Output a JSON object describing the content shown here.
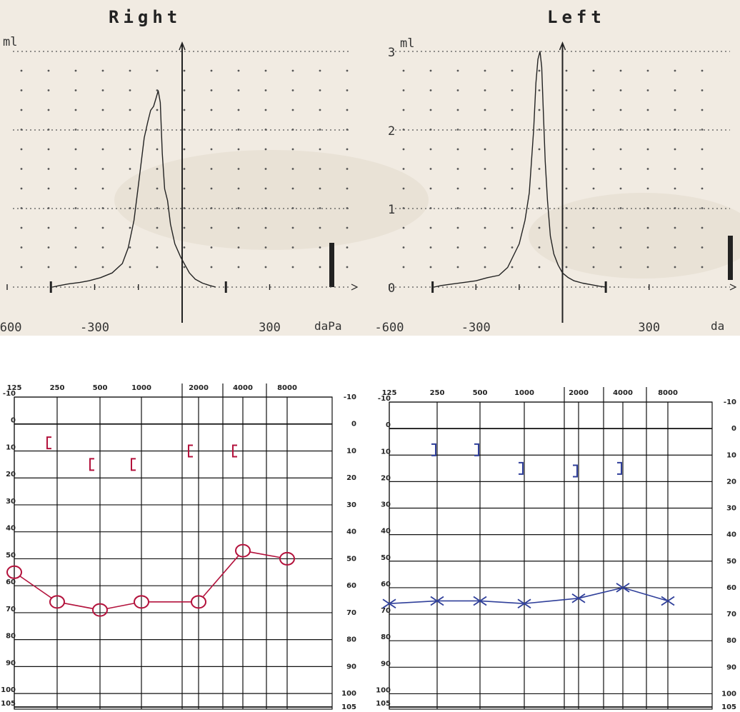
{
  "colors": {
    "paper": "#f1ebe2",
    "trace": "#222222",
    "grid_dot": "#555555",
    "right_ear": "#b3123c",
    "left_ear": "#2f3f9a"
  },
  "chart_data": [
    {
      "type": "line",
      "panel": "tympanogram-right",
      "title": "Right",
      "ylabel": "ml",
      "xunit": "daPa",
      "xlim": [
        -600,
        600
      ],
      "ylim": [
        0,
        3
      ],
      "x_tick_labels": [
        "-600",
        "-300",
        "300"
      ],
      "y_tick_labels": [],
      "grid": true,
      "series": [
        {
          "x": [
            -445,
            -420,
            -390,
            -350,
            -320,
            -280,
            -240,
            -205,
            -185,
            -165,
            -150,
            -130,
            -118,
            -108,
            -98,
            -90,
            -82,
            -75,
            -68,
            -60,
            -50,
            -40,
            -25,
            -5,
            10,
            25,
            45,
            70,
            95,
            115
          ],
          "y": [
            0.0,
            0.02,
            0.04,
            0.06,
            0.08,
            0.12,
            0.18,
            0.3,
            0.5,
            0.85,
            1.3,
            1.9,
            2.1,
            2.25,
            2.3,
            2.4,
            2.5,
            2.35,
            1.7,
            1.25,
            1.1,
            0.8,
            0.55,
            0.38,
            0.28,
            0.18,
            0.1,
            0.05,
            0.02,
            0.0
          ]
        }
      ]
    },
    {
      "type": "line",
      "panel": "tympanogram-left",
      "title": "Left",
      "ylabel": "ml",
      "xunit": "da",
      "xlim": [
        -600,
        600
      ],
      "ylim": [
        0,
        3
      ],
      "x_tick_labels": [
        "-600",
        "-300",
        "300"
      ],
      "y_tick_labels": [
        "0",
        "1",
        "2",
        "3"
      ],
      "grid": true,
      "series": [
        {
          "x": [
            -445,
            -420,
            -380,
            -340,
            -300,
            -260,
            -220,
            -190,
            -170,
            -150,
            -130,
            -115,
            -100,
            -92,
            -85,
            -78,
            -72,
            -66,
            -60,
            -52,
            -42,
            -30,
            -15,
            0,
            20,
            40,
            70,
            100,
            130,
            150
          ],
          "y": [
            0.0,
            0.02,
            0.04,
            0.06,
            0.08,
            0.12,
            0.15,
            0.25,
            0.4,
            0.55,
            0.85,
            1.2,
            2.0,
            2.6,
            2.9,
            3.0,
            2.8,
            2.2,
            1.6,
            1.1,
            0.65,
            0.42,
            0.28,
            0.18,
            0.12,
            0.08,
            0.05,
            0.03,
            0.01,
            0.0
          ]
        }
      ]
    },
    {
      "type": "line",
      "panel": "audiogram-right",
      "x_tick_labels": [
        "125",
        "250",
        "500",
        "1000",
        "2000",
        "4000",
        "8000"
      ],
      "y_tick_labels": [
        "-10",
        "0",
        "10",
        "20",
        "30",
        "40",
        "50",
        "60",
        "70",
        "80",
        "90",
        "100",
        "105"
      ],
      "right_tick_labels": [
        "-10",
        "0",
        "10",
        "20",
        "30",
        "40",
        "50",
        "60",
        "70",
        "80",
        "90",
        "100",
        "105"
      ],
      "ylim": [
        -10,
        105
      ],
      "grid": true,
      "series": [
        {
          "marker": "O",
          "x": [
            125,
            250,
            500,
            1000,
            2000,
            4000,
            8000
          ],
          "y": [
            55,
            66,
            69,
            66,
            66,
            47,
            50
          ]
        },
        {
          "marker": "[",
          "x": [
            250,
            500,
            1000,
            2000,
            4000
          ],
          "y": [
            7,
            15,
            15,
            10,
            10
          ]
        }
      ]
    },
    {
      "type": "line",
      "panel": "audiogram-left",
      "x_tick_labels": [
        "125",
        "250",
        "500",
        "1000",
        "2000",
        "4000",
        "8000"
      ],
      "y_tick_labels": [
        "-10",
        "0",
        "10",
        "20",
        "30",
        "40",
        "50",
        "60",
        "70",
        "80",
        "90",
        "100",
        "105"
      ],
      "right_tick_labels": [
        "-10",
        "0",
        "10",
        "20",
        "30",
        "40",
        "50",
        "60",
        "70",
        "80",
        "90",
        "100",
        "105"
      ],
      "ylim": [
        -10,
        105
      ],
      "grid": true,
      "series": [
        {
          "marker": "X",
          "x": [
            125,
            250,
            500,
            1000,
            2000,
            4000,
            8000
          ],
          "y": [
            66,
            65,
            65,
            66,
            64,
            60,
            65
          ]
        },
        {
          "marker": "]",
          "x": [
            250,
            500,
            1000,
            2000,
            4000
          ],
          "y": [
            8,
            8,
            15,
            16,
            15
          ]
        }
      ]
    }
  ]
}
